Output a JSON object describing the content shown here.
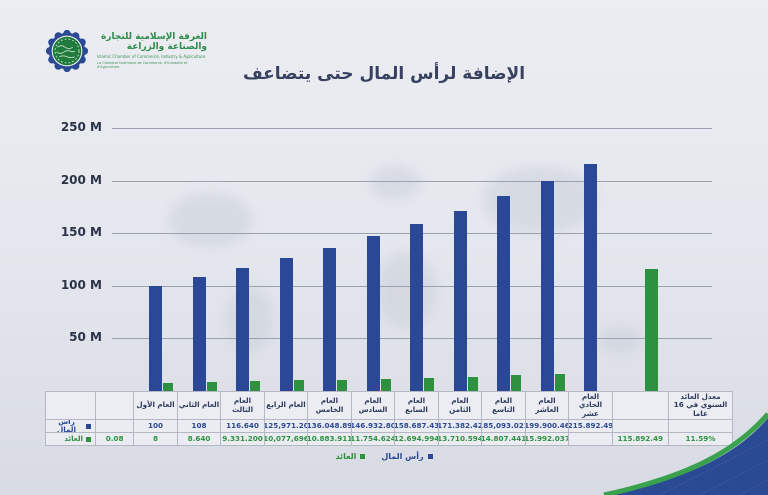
{
  "logo": {
    "org_name_ar": "الغرفة الإسلامية للتجارة والصناعة والزراعة",
    "org_name_en": "Islamic Chamber of Commerce, Industry & Agriculture",
    "org_name_fr": "La Chambre Islamique de Commerce, d'Industrie et d'Agriculture"
  },
  "title": "الإضافة لرأس المال حتى يتضاعف",
  "colors": {
    "capital_blue": "#2a4896",
    "return_green": "#2e9140",
    "grid": "#9ba1ae",
    "title_navy": "#38415f",
    "swoosh_blue": "#2b4a94",
    "swoosh_green": "#3aa14e"
  },
  "chart_data": {
    "type": "bar",
    "title": "الإضافة لرأس المال حتى يتضاعف",
    "xlabel": "",
    "ylabel": "",
    "unit": "M",
    "ylim": [
      0,
      250
    ],
    "grid": true,
    "legend_position": "bottom",
    "y_ticks": [
      {
        "label": "250 M",
        "value": 250
      },
      {
        "label": "200 M",
        "value": 200
      },
      {
        "label": "150 M",
        "value": 150
      },
      {
        "label": "100 M",
        "value": 100
      },
      {
        "label": "50 M",
        "value": 50
      }
    ],
    "categories": [
      "العام الأول",
      "العام الثاني",
      "العام الثالث",
      "العام الرابع",
      "العام الخامس",
      "العام السادس",
      "العام السابع",
      "العام الثامن",
      "العام التاسع",
      "العام العاشر",
      "العام الحادي عشر",
      "",
      "معدل العائد السنوي في 16 عاما"
    ],
    "series": [
      {
        "name": "رأس المال",
        "color": "#2a4896",
        "values": [
          100,
          108,
          116.64,
          125.971,
          136.049,
          146.933,
          158.687,
          171.382,
          185.093,
          199.9,
          215.892,
          null,
          null
        ]
      },
      {
        "name": "العائد",
        "color": "#2e9140",
        "values": [
          8,
          8.64,
          9.331,
          10.078,
          10.884,
          11.755,
          12.695,
          13.711,
          14.807,
          15.992,
          null,
          115.892,
          null
        ]
      }
    ],
    "interest_rate": "0.08",
    "annual_return_over_period": "11.59%"
  },
  "table": {
    "rate_cell": "0.08",
    "row_labels": {
      "capital": "رأس المال",
      "return": "العائد"
    },
    "columns": [
      {
        "header": "العام الأول",
        "capital": "100",
        "return": "8"
      },
      {
        "header": "العام الثاني",
        "capital": "108",
        "return": "8.640"
      },
      {
        "header": "العام الثالث",
        "capital": "116.640",
        "return": "9.331.200"
      },
      {
        "header": "العام الرابع",
        "capital": "125,971.20",
        "return": "10,077,696"
      },
      {
        "header": "العام الخامس",
        "capital": "136.048.89",
        "return": "10.883.911"
      },
      {
        "header": "العام السادس",
        "capital": "146.932.80",
        "return": "11.754.624"
      },
      {
        "header": "العام السابع",
        "capital": "158.687.43",
        "return": "12.694.994"
      },
      {
        "header": "العام الثامن",
        "capital": "171.382.42",
        "return": "13.710.594"
      },
      {
        "header": "العام التاسع",
        "capital": "185,093.021",
        "return": "14.807.441"
      },
      {
        "header": "العام العاشر",
        "capital": "199.900.46",
        "return": "15.992.037"
      },
      {
        "header": "العام الحادي عشر",
        "capital": "215.892.49",
        "return": ""
      },
      {
        "header": "",
        "capital": "",
        "return": "115.892.49"
      },
      {
        "header": "معدل العائد السنوي في 16 عاما",
        "capital": "",
        "return": "11.59%"
      }
    ]
  },
  "legend": {
    "items": [
      {
        "label": "رأس المال",
        "color": "#2a4896"
      },
      {
        "label": "العائد",
        "color": "#2e9140"
      }
    ]
  }
}
